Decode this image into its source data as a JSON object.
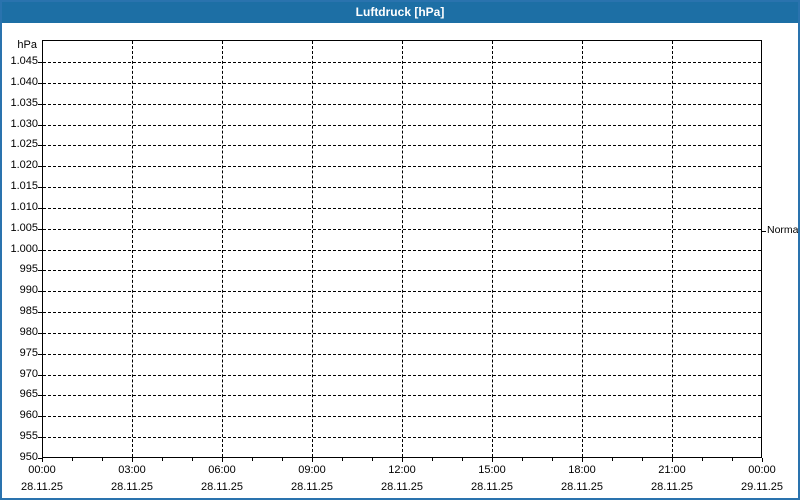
{
  "window": {
    "title": "Luftdruck [hPa]"
  },
  "colors": {
    "titlebar_bg": "#1d6fa5",
    "titlebar_text": "#ffffff",
    "frame_border": "#2a73ae",
    "background": "#ffffff",
    "axis": "#000000",
    "grid": "#000000",
    "text": "#000000"
  },
  "chart_data": {
    "type": "line",
    "title": "Luftdruck [hPa]",
    "ylabel": "hPa",
    "xlabel": "",
    "ylim": [
      950,
      1050.3
    ],
    "grid": "dashed",
    "legend_position": "none",
    "plot_is_empty": true,
    "series": [],
    "y_ticks": [
      {
        "value": 1045,
        "label": "1.045"
      },
      {
        "value": 1040,
        "label": "1.040"
      },
      {
        "value": 1035,
        "label": "1.035"
      },
      {
        "value": 1030,
        "label": "1.030"
      },
      {
        "value": 1025,
        "label": "1.025"
      },
      {
        "value": 1020,
        "label": "1.020"
      },
      {
        "value": 1015,
        "label": "1.015"
      },
      {
        "value": 1010,
        "label": "1.010"
      },
      {
        "value": 1005,
        "label": "1.005"
      },
      {
        "value": 1000,
        "label": "1.000"
      },
      {
        "value": 995,
        "label": "995"
      },
      {
        "value": 990,
        "label": "990"
      },
      {
        "value": 985,
        "label": "985"
      },
      {
        "value": 980,
        "label": "980"
      },
      {
        "value": 975,
        "label": "975"
      },
      {
        "value": 970,
        "label": "970"
      },
      {
        "value": 965,
        "label": "965"
      },
      {
        "value": 960,
        "label": "960"
      },
      {
        "value": 955,
        "label": "955"
      },
      {
        "value": 950,
        "label": "950"
      }
    ],
    "x_ticks": [
      {
        "time": "00:00",
        "date": "28.11.25"
      },
      {
        "time": "03:00",
        "date": "28.11.25"
      },
      {
        "time": "06:00",
        "date": "28.11.25"
      },
      {
        "time": "09:00",
        "date": "28.11.25"
      },
      {
        "time": "12:00",
        "date": "28.11.25"
      },
      {
        "time": "15:00",
        "date": "28.11.25"
      },
      {
        "time": "18:00",
        "date": "28.11.25"
      },
      {
        "time": "21:00",
        "date": "28.11.25"
      },
      {
        "time": "00:00",
        "date": "29.11.25"
      }
    ],
    "x_minor_interval_hours": 1,
    "x_major_interval_hours": 3,
    "reference_line": {
      "label": "Normal",
      "value": 1004.5,
      "side": "right"
    }
  }
}
